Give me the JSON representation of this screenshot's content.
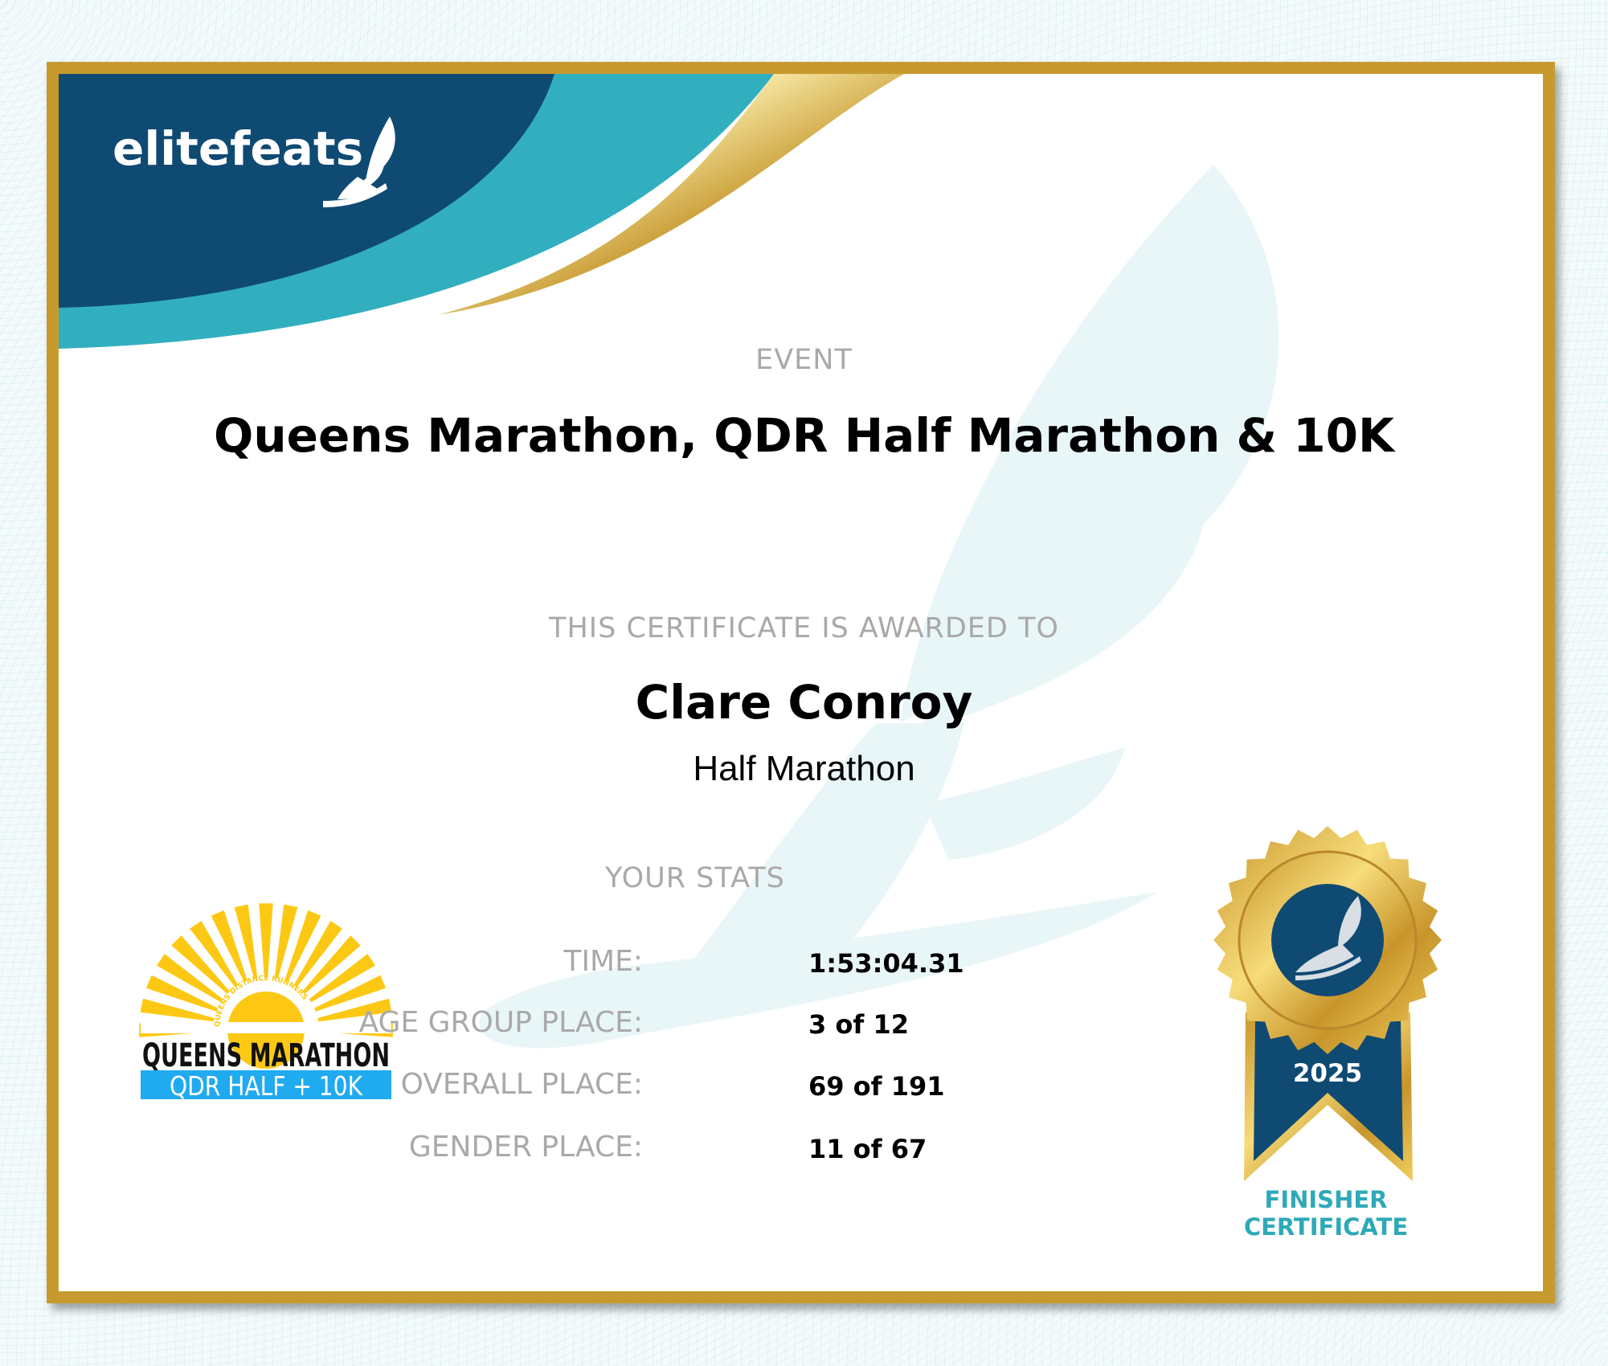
{
  "brand": {
    "name": "elitefeats",
    "colors": {
      "navy": "#0f4a73",
      "teal": "#32afbf",
      "gold": "#c79a2e",
      "label_gray": "#a9a9a9"
    }
  },
  "certificate": {
    "event_label": "EVENT",
    "event_title": "Queens Marathon, QDR Half Marathon & 10K",
    "awarded_label": "THIS CERTIFICATE IS AWARDED TO",
    "recipient": "Clare Conroy",
    "race": "Half Marathon",
    "stats_label": "YOUR STATS",
    "stats": [
      {
        "label": "TIME:",
        "value": "1:53:04.31"
      },
      {
        "label": "AGE GROUP PLACE:",
        "value": "3 of 12"
      },
      {
        "label": "OVERALL PLACE:",
        "value": "69 of 191"
      },
      {
        "label": "GENDER PLACE:",
        "value": "11 of 67"
      }
    ]
  },
  "event_logo": {
    "arc_text": "QUEENS DISTANCE RUNNERS",
    "line1": "QUEENS MARATHON",
    "line2": "QDR HALF + 10K"
  },
  "badge": {
    "year": "2025",
    "caption_line1": "FINISHER",
    "caption_line2": "CERTIFICATE",
    "icon": "winged-foot-icon"
  }
}
